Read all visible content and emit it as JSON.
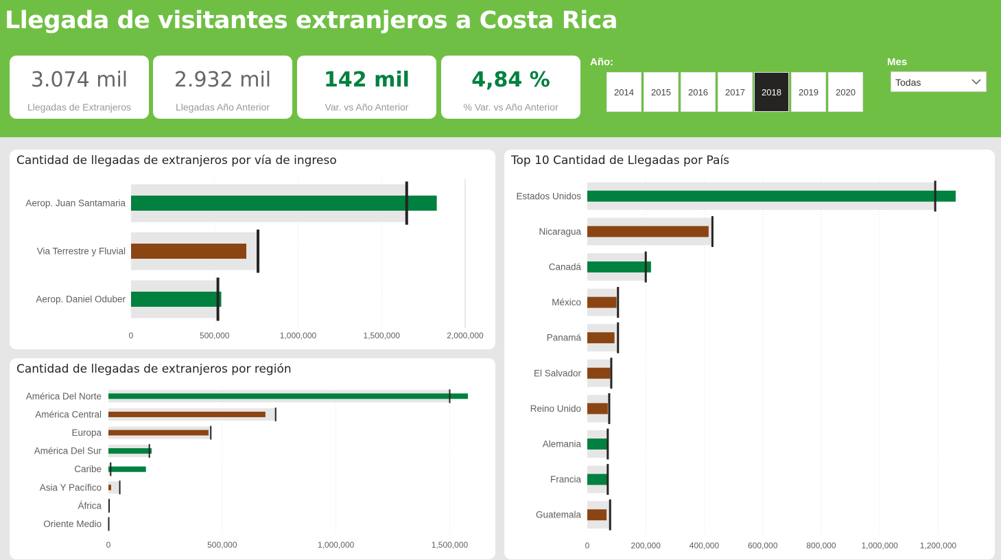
{
  "title": "Llegada de visitantes extranjeros a Costa Rica",
  "kpis": [
    {
      "value": "3.074 mil",
      "label": "Llegadas de Extranjeros"
    },
    {
      "value": "2.932 mil",
      "label": "Llegadas Año Anterior"
    },
    {
      "value": "142 mil",
      "label": "Var. vs Año Anterior"
    },
    {
      "value": "4,84 %",
      "label": "% Var. vs Año Anterior"
    }
  ],
  "year_slicer": {
    "title": "Año:",
    "years": [
      "2014",
      "2015",
      "2016",
      "2017",
      "2018",
      "2019",
      "2020"
    ],
    "selected": "2018"
  },
  "month_slicer": {
    "title": "Mes",
    "value": "Todas"
  },
  "colors": {
    "header": "#70bf45",
    "increase": "#00813f",
    "decrease": "#8b4513",
    "previous_year_band": "#e6e6e6",
    "target_marker": "#252423"
  },
  "chart_data": [
    {
      "type": "bar",
      "title": "Cantidad de llegadas de extranjeros por vía de ingreso",
      "categories": [
        "Aerop. Juan Santamaria",
        "Via Terrestre y Fluvial",
        "Aerop. Daniel Oduber"
      ],
      "series": [
        {
          "values": [
            1830000,
            690000,
            540000
          ]
        },
        {
          "values": [
            1650000,
            760000,
            520000
          ]
        }
      ],
      "xticks": [
        "0",
        "500,000",
        "1,000,000",
        "1,500,000",
        "2,000,000"
      ],
      "xlim": [
        0,
        2000000
      ]
    },
    {
      "type": "bar",
      "title": "Cantidad de llegadas de extranjeros por región",
      "categories": [
        "América Del Norte",
        "América Central",
        "Europa",
        "América Del Sur",
        "Caribe",
        "Asia Y Pacífico",
        "África",
        "Oriente Medio"
      ],
      "series": [
        {
          "values": [
            1580000,
            690000,
            440000,
            190000,
            165000,
            12000,
            4000,
            2000
          ]
        },
        {
          "values": [
            1500000,
            735000,
            450000,
            180000,
            10000,
            50000,
            3000,
            1500
          ]
        }
      ],
      "xticks": [
        "0",
        "500,000",
        "1,000,000",
        "1,500,000"
      ],
      "xlim": [
        0,
        1580000
      ]
    },
    {
      "type": "bar",
      "title": "Top 10 Cantidad de Llegadas por País",
      "categories": [
        "Estados Unidos",
        "Nicaragua",
        "Canadá",
        "México",
        "Panamá",
        "El Salvador",
        "Reino Unido",
        "Alemania",
        "Francia",
        "Guatemala"
      ],
      "series": [
        {
          "values": [
            1260000,
            415000,
            218000,
            100000,
            93000,
            78000,
            70000,
            70000,
            70000,
            66000
          ]
        },
        {
          "values": [
            1190000,
            428000,
            200000,
            105000,
            105000,
            82000,
            75000,
            70000,
            70000,
            78000
          ]
        }
      ],
      "xticks": [
        "0",
        "200,000",
        "400,000",
        "600,000",
        "800,000",
        "1,000,000",
        "1,200,000"
      ],
      "xlim": [
        0,
        1300000
      ]
    }
  ]
}
